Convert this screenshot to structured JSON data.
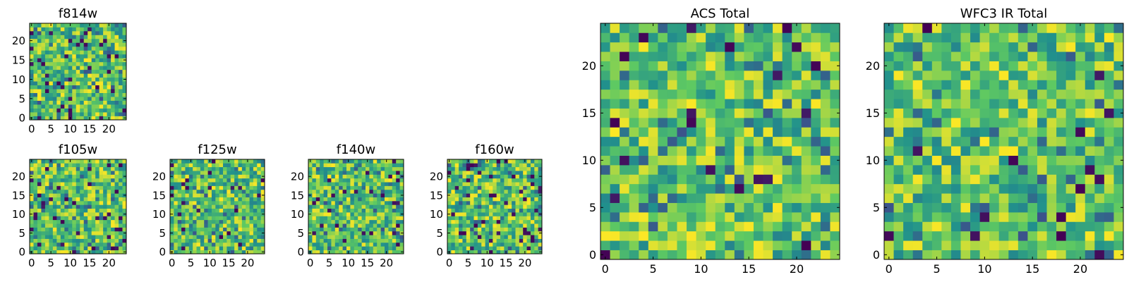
{
  "colormap": {
    "name": "viridis",
    "stops": [
      "#440154",
      "#3b528b",
      "#21918c",
      "#5ec962",
      "#fde725"
    ]
  },
  "chart_data": [
    {
      "type": "heatmap",
      "title": "f814w",
      "xlabel": "",
      "ylabel": "",
      "xlim": [
        -0.5,
        24.5
      ],
      "ylim": [
        -0.5,
        24.5
      ],
      "x_ticks": [
        0,
        5,
        10,
        15,
        20
      ],
      "y_ticks": [
        0,
        5,
        10,
        15,
        20
      ],
      "grid_size": 25,
      "pixels_per_cell": 1,
      "seed": 814,
      "dark_fraction": 0.06
    },
    {
      "type": "heatmap",
      "title": "f105w",
      "xlabel": "",
      "ylabel": "",
      "xlim": [
        -0.5,
        24.5
      ],
      "ylim": [
        -0.5,
        24.5
      ],
      "x_ticks": [
        0,
        5,
        10,
        15,
        20
      ],
      "y_ticks": [
        0,
        5,
        10,
        15,
        20
      ],
      "grid_size": 25,
      "pixels_per_cell": 1,
      "seed": 105,
      "dark_fraction": 0.05
    },
    {
      "type": "heatmap",
      "title": "f125w",
      "xlabel": "",
      "ylabel": "",
      "xlim": [
        -0.5,
        24.5
      ],
      "ylim": [
        -0.5,
        24.5
      ],
      "x_ticks": [
        0,
        5,
        10,
        15,
        20
      ],
      "y_ticks": [
        0,
        5,
        10,
        15,
        20
      ],
      "grid_size": 25,
      "pixels_per_cell": 1,
      "seed": 125,
      "dark_fraction": 0.05
    },
    {
      "type": "heatmap",
      "title": "f140w",
      "xlabel": "",
      "ylabel": "",
      "xlim": [
        -0.5,
        24.5
      ],
      "ylim": [
        -0.5,
        24.5
      ],
      "x_ticks": [
        0,
        5,
        10,
        15,
        20
      ],
      "y_ticks": [
        0,
        5,
        10,
        15,
        20
      ],
      "grid_size": 25,
      "pixels_per_cell": 1,
      "seed": 140,
      "dark_fraction": 0.05
    },
    {
      "type": "heatmap",
      "title": "f160w",
      "xlabel": "",
      "ylabel": "",
      "xlim": [
        -0.5,
        24.5
      ],
      "ylim": [
        -0.5,
        24.5
      ],
      "x_ticks": [
        0,
        5,
        10,
        15,
        20
      ],
      "y_ticks": [
        0,
        5,
        10,
        15,
        20
      ],
      "grid_size": 25,
      "pixels_per_cell": 1,
      "seed": 160,
      "dark_fraction": 0.05
    },
    {
      "type": "heatmap",
      "title": "ACS Total",
      "xlabel": "",
      "ylabel": "",
      "xlim": [
        -0.5,
        24.5
      ],
      "ylim": [
        -0.5,
        24.5
      ],
      "x_ticks": [
        0,
        5,
        10,
        15,
        20
      ],
      "y_ticks": [
        0,
        5,
        10,
        15,
        20
      ],
      "grid_size": 25,
      "pixels_per_cell": 1,
      "seed": 7,
      "dark_fraction": 0.035
    },
    {
      "type": "heatmap",
      "title": "WFC3 IR Total",
      "xlabel": "",
      "ylabel": "",
      "xlim": [
        -0.5,
        24.5
      ],
      "ylim": [
        -0.5,
        24.5
      ],
      "x_ticks": [
        0,
        5,
        10,
        15,
        20
      ],
      "y_ticks": [
        0,
        5,
        10,
        15,
        20
      ],
      "grid_size": 25,
      "pixels_per_cell": 1,
      "seed": 31,
      "dark_fraction": 0.03
    }
  ]
}
